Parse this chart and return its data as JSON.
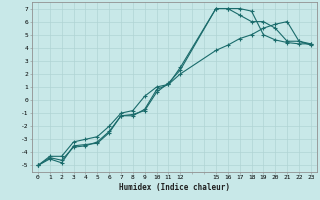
{
  "xlabel": "Humidex (Indice chaleur)",
  "bg_color": "#c8e8e8",
  "grid_color": "#b0d4d4",
  "line_color": "#1a6b6b",
  "xlim": [
    -0.5,
    23.5
  ],
  "ylim": [
    -5.5,
    7.5
  ],
  "xticks": [
    0,
    1,
    2,
    3,
    4,
    5,
    6,
    7,
    8,
    9,
    10,
    11,
    12,
    15,
    16,
    17,
    18,
    19,
    20,
    21,
    22,
    23
  ],
  "yticks": [
    7,
    6,
    5,
    4,
    3,
    2,
    1,
    0,
    -1,
    -2,
    -3,
    -4,
    -5
  ],
  "line1_x": [
    0,
    1,
    2,
    3,
    4,
    5,
    6,
    7,
    8,
    9,
    10,
    11,
    12,
    15,
    16,
    17,
    18,
    19,
    20,
    21,
    22,
    23
  ],
  "line1_y": [
    -5.0,
    -4.5,
    -4.8,
    -3.5,
    -3.4,
    -3.3,
    -2.5,
    -1.2,
    -1.1,
    -0.8,
    0.6,
    1.3,
    2.3,
    7.0,
    7.0,
    6.5,
    6.0,
    6.0,
    5.5,
    4.5,
    4.5,
    4.3
  ],
  "line2_x": [
    0,
    1,
    2,
    3,
    4,
    5,
    6,
    7,
    8,
    9,
    10,
    11,
    12,
    15,
    16,
    17,
    18,
    19,
    20,
    21,
    22,
    23
  ],
  "line2_y": [
    -5.0,
    -4.4,
    -4.6,
    -3.6,
    -3.5,
    -3.2,
    -2.4,
    -1.2,
    -1.2,
    -0.7,
    0.8,
    1.2,
    2.5,
    7.0,
    7.0,
    7.0,
    6.8,
    5.0,
    4.6,
    4.4,
    4.3,
    4.3
  ],
  "line3_x": [
    0,
    1,
    2,
    3,
    4,
    5,
    6,
    7,
    8,
    9,
    10,
    11,
    12,
    15,
    16,
    17,
    18,
    19,
    20,
    21,
    22,
    23
  ],
  "line3_y": [
    -5.0,
    -4.3,
    -4.3,
    -3.2,
    -3.0,
    -2.8,
    -2.0,
    -1.0,
    -0.8,
    0.3,
    1.0,
    1.2,
    2.0,
    3.8,
    4.2,
    4.7,
    5.0,
    5.5,
    5.8,
    6.0,
    4.5,
    4.2
  ]
}
